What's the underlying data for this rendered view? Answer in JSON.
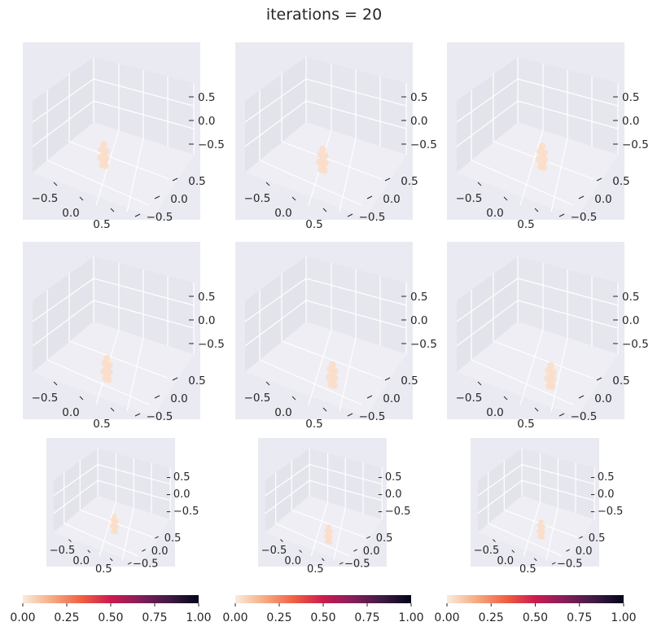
{
  "title": "iterations = 20",
  "chart_data": {
    "type": "scatter",
    "subplot_kind": "3d-scatter",
    "grid": true,
    "theme_background": "#EAEAF2",
    "grid_color": "#ffffff",
    "point_color": "#FBDDC9",
    "title": "iterations = 20",
    "axes": {
      "x_ticks": [
        "−0.5",
        "0.0",
        "0.5"
      ],
      "y_ticks": [
        "−0.5",
        "0.0",
        "0.5"
      ],
      "z_ticks": [
        "−0.5",
        "0.0",
        "0.5"
      ],
      "xlim": [
        -0.9,
        0.9
      ],
      "ylim": [
        -0.9,
        0.9
      ],
      "zlim": [
        -0.9,
        0.9
      ]
    },
    "subplots": [
      {
        "row": 1,
        "col": 1,
        "cluster_center": [
          -0.15,
          0.05,
          -0.15
        ]
      },
      {
        "row": 1,
        "col": 2,
        "cluster_center": [
          -0.05,
          0.05,
          -0.2
        ]
      },
      {
        "row": 1,
        "col": 3,
        "cluster_center": [
          0.05,
          0.1,
          -0.15
        ]
      },
      {
        "row": 2,
        "col": 1,
        "cluster_center": [
          -0.1,
          0.05,
          -0.35
        ]
      },
      {
        "row": 2,
        "col": 2,
        "cluster_center": [
          0.1,
          0.05,
          -0.4
        ]
      },
      {
        "row": 2,
        "col": 3,
        "cluster_center": [
          0.2,
          0.05,
          -0.4
        ]
      },
      {
        "row": 3,
        "col": 1,
        "cluster_center": [
          0.05,
          0.05,
          -0.2
        ]
      },
      {
        "row": 3,
        "col": 2,
        "cluster_center": [
          0.1,
          0.05,
          -0.4
        ]
      },
      {
        "row": 3,
        "col": 3,
        "cluster_center": [
          0.1,
          0.05,
          -0.3
        ]
      }
    ],
    "colorbar": {
      "colormap": "rocket_r",
      "range": [
        0,
        1
      ],
      "ticks": [
        "0.00",
        "0.25",
        "0.50",
        "0.75",
        "1.00"
      ],
      "stops": [
        "#FAEBDD",
        "#F6AA82",
        "#F06043",
        "#CB1B4F",
        "#841E5A",
        "#3F1B44",
        "#03051A"
      ]
    }
  }
}
